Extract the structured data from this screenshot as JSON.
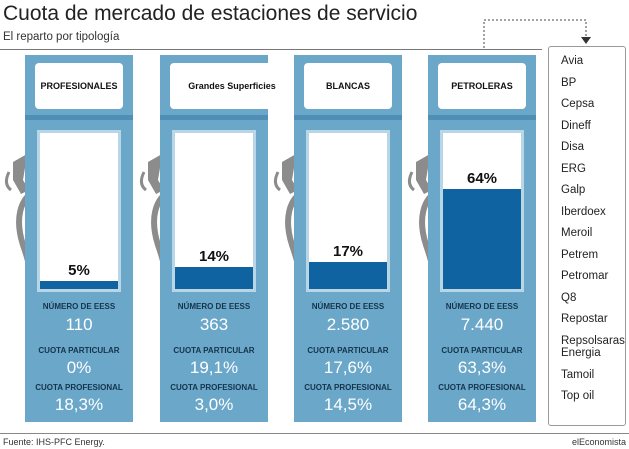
{
  "title": "Cuota de mercado de estaciones de servicio",
  "subtitle": "El reparto por tipología",
  "footer": {
    "source": "Fuente: IHS-PFC Energy.",
    "brand": "elEconomista"
  },
  "labels": {
    "num_eess": "NÚMERO DE EESS",
    "cuota_particular": "CUOTA PARTICULAR",
    "cuota_profesional": "CUOTA PROFESIONAL"
  },
  "petroleras_list": [
    "Avia",
    "BP",
    "Cepsa",
    "Dineff",
    "Disa",
    "ERG",
    "Galp",
    "Iberdoex",
    "Meroil",
    "Petrem",
    "Petromar",
    "Q8",
    "Repostar",
    "Repsolsaras Energia",
    "Tamoil",
    "Top oil"
  ],
  "colors": {
    "pump": "#6aa7c9",
    "fill": "#0f63a0",
    "hose": "#8c8c8c"
  },
  "chart_data": {
    "type": "bar",
    "title": "Cuota de mercado de estaciones de servicio",
    "subtitle": "El reparto por tipología",
    "categories": [
      "PROFESIONALES",
      "Grandes Superficies",
      "BLANCAS",
      "PETROLERAS"
    ],
    "values": [
      5,
      14,
      17,
      64
    ],
    "value_labels": [
      "5%",
      "14%",
      "17%",
      "64%"
    ],
    "ylim": [
      0,
      100
    ],
    "num_eess": [
      "110",
      "363",
      "2.580",
      "7.440"
    ],
    "cuota_particular": [
      "0%",
      "19,1%",
      "17,6%",
      "63,3%"
    ],
    "cuota_profesional": [
      "18,3%",
      "3,0%",
      "14,5%",
      "64,3%"
    ]
  }
}
